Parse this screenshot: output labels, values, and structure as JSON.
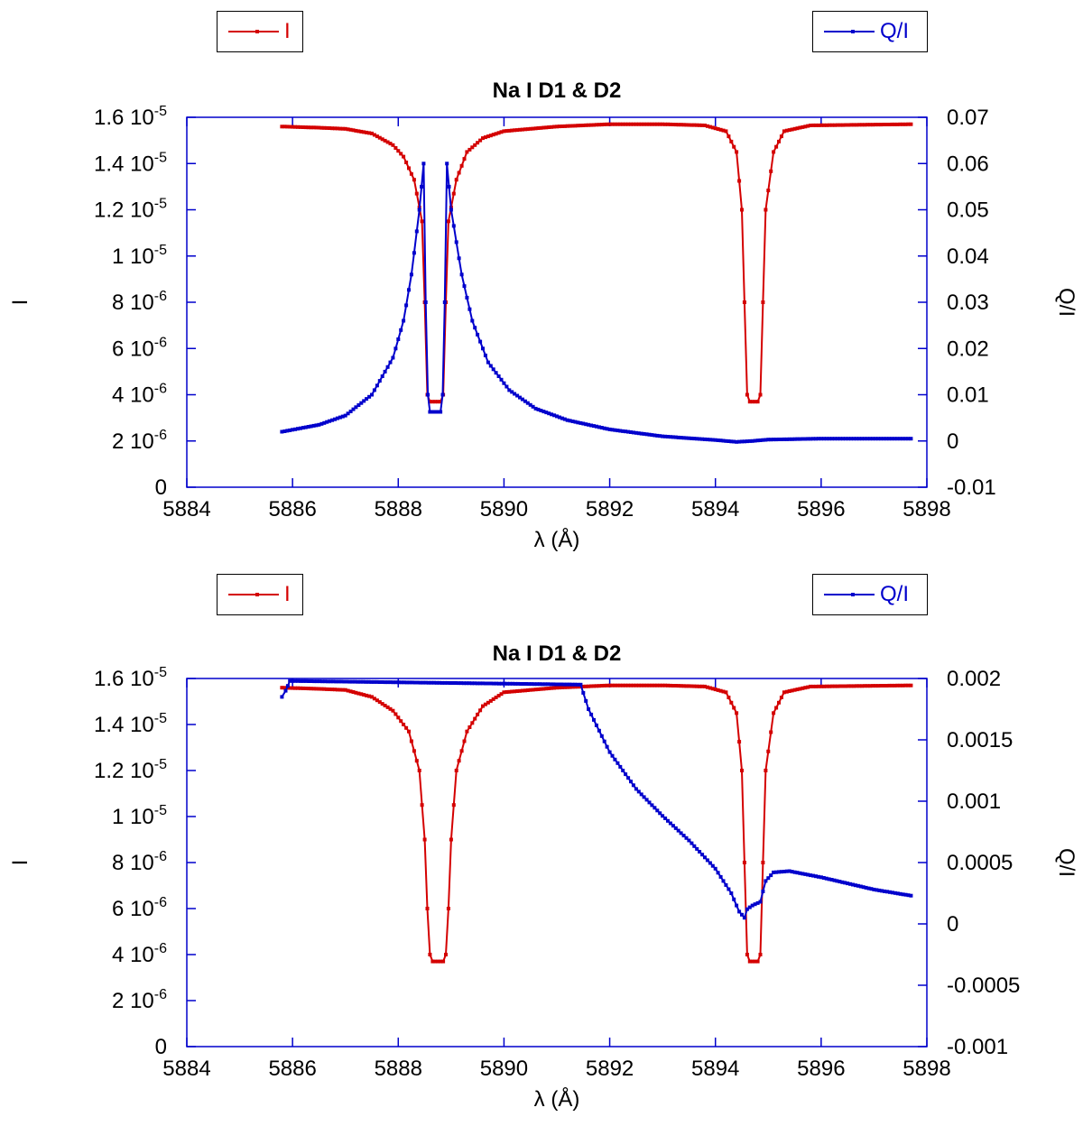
{
  "chart_data": [
    {
      "type": "line",
      "title": "Na I D1 & D2",
      "xlabel": "λ (Å)",
      "ylabel": "I",
      "y2label": "Q/I",
      "xlim": [
        5884,
        5898
      ],
      "ylim": [
        0,
        1.6e-05
      ],
      "y2lim": [
        -0.01,
        0.07
      ],
      "xticks": [
        "5884",
        "5886",
        "5888",
        "5890",
        "5892",
        "5894",
        "5896",
        "5898"
      ],
      "yticks": [
        {
          "base": "0",
          "exp": ""
        },
        {
          "base": "2 10",
          "exp": "-6"
        },
        {
          "base": "4 10",
          "exp": "-6"
        },
        {
          "base": "6 10",
          "exp": "-6"
        },
        {
          "base": "8 10",
          "exp": "-6"
        },
        {
          "base": "1 10",
          "exp": "-5"
        },
        {
          "base": "1.2 10",
          "exp": "-5"
        },
        {
          "base": "1.4 10",
          "exp": "-5"
        },
        {
          "base": "1.6 10",
          "exp": "-5"
        }
      ],
      "y2ticks": [
        "-0.01",
        "0",
        "0.01",
        "0.02",
        "0.03",
        "0.04",
        "0.05",
        "0.06",
        "0.07"
      ],
      "legend": {
        "left": "I",
        "right": "Q/I"
      },
      "series": [
        {
          "name": "I",
          "axis": "left",
          "color": "#d40000",
          "points": [
            [
              5885.8,
              1.56e-05
            ],
            [
              5886.5,
              1.555e-05
            ],
            [
              5887.0,
              1.55e-05
            ],
            [
              5887.5,
              1.53e-05
            ],
            [
              5887.9,
              1.48e-05
            ],
            [
              5888.1,
              1.43e-05
            ],
            [
              5888.3,
              1.33e-05
            ],
            [
              5888.45,
              1.15e-05
            ],
            [
              5888.5,
              8e-06
            ],
            [
              5888.55,
              4e-06
            ],
            [
              5888.6,
              3.7e-06
            ],
            [
              5888.7,
              3.7e-06
            ],
            [
              5888.8,
              3.7e-06
            ],
            [
              5888.85,
              4e-06
            ],
            [
              5888.9,
              8e-06
            ],
            [
              5888.95,
              1.15e-05
            ],
            [
              5889.1,
              1.33e-05
            ],
            [
              5889.3,
              1.45e-05
            ],
            [
              5889.6,
              1.51e-05
            ],
            [
              5890.0,
              1.54e-05
            ],
            [
              5891.0,
              1.56e-05
            ],
            [
              5892.0,
              1.57e-05
            ],
            [
              5893.0,
              1.57e-05
            ],
            [
              5893.8,
              1.565e-05
            ],
            [
              5894.2,
              1.54e-05
            ],
            [
              5894.4,
              1.45e-05
            ],
            [
              5894.5,
              1.2e-05
            ],
            [
              5894.55,
              8e-06
            ],
            [
              5894.6,
              4e-06
            ],
            [
              5894.65,
              3.7e-06
            ],
            [
              5894.75,
              3.7e-06
            ],
            [
              5894.8,
              3.7e-06
            ],
            [
              5894.85,
              4e-06
            ],
            [
              5894.9,
              8e-06
            ],
            [
              5894.95,
              1.2e-05
            ],
            [
              5895.1,
              1.45e-05
            ],
            [
              5895.3,
              1.54e-05
            ],
            [
              5895.8,
              1.565e-05
            ],
            [
              5897.7,
              1.57e-05
            ]
          ]
        },
        {
          "name": "Q/I",
          "axis": "right",
          "color": "#0000cc",
          "points": [
            [
              5885.8,
              0.002
            ],
            [
              5886.5,
              0.0035
            ],
            [
              5887.0,
              0.0055
            ],
            [
              5887.5,
              0.01
            ],
            [
              5887.9,
              0.018
            ],
            [
              5888.1,
              0.026
            ],
            [
              5888.25,
              0.036
            ],
            [
              5888.4,
              0.05
            ],
            [
              5888.48,
              0.06
            ],
            [
              5888.52,
              0.03
            ],
            [
              5888.56,
              0.01
            ],
            [
              5888.6,
              0.0063
            ],
            [
              5888.7,
              0.0063
            ],
            [
              5888.8,
              0.0063
            ],
            [
              5888.84,
              0.01
            ],
            [
              5888.88,
              0.03
            ],
            [
              5888.92,
              0.06
            ],
            [
              5889.0,
              0.05
            ],
            [
              5889.2,
              0.036
            ],
            [
              5889.4,
              0.026
            ],
            [
              5889.7,
              0.017
            ],
            [
              5890.1,
              0.011
            ],
            [
              5890.6,
              0.007
            ],
            [
              5891.2,
              0.0045
            ],
            [
              5892.0,
              0.0025
            ],
            [
              5893.0,
              0.001
            ],
            [
              5894.0,
              0.0002
            ],
            [
              5894.4,
              -0.0002
            ],
            [
              5894.7,
              0.0
            ],
            [
              5895.0,
              0.0003
            ],
            [
              5896.0,
              0.0005
            ],
            [
              5897.7,
              0.0005
            ]
          ]
        }
      ]
    },
    {
      "type": "line",
      "title": "Na I D1 & D2",
      "xlabel": "λ (Å)",
      "ylabel": "I",
      "y2label": "Q/I",
      "xlim": [
        5884,
        5898
      ],
      "ylim": [
        0,
        1.6e-05
      ],
      "y2lim": [
        -0.001,
        0.002
      ],
      "xticks": [
        "5884",
        "5886",
        "5888",
        "5890",
        "5892",
        "5894",
        "5896",
        "5898"
      ],
      "yticks": [
        {
          "base": "0",
          "exp": ""
        },
        {
          "base": "2 10",
          "exp": "-6"
        },
        {
          "base": "4 10",
          "exp": "-6"
        },
        {
          "base": "6 10",
          "exp": "-6"
        },
        {
          "base": "8 10",
          "exp": "-6"
        },
        {
          "base": "1 10",
          "exp": "-5"
        },
        {
          "base": "1.2 10",
          "exp": "-5"
        },
        {
          "base": "1.4 10",
          "exp": "-5"
        },
        {
          "base": "1.6 10",
          "exp": "-5"
        }
      ],
      "y2ticks": [
        "-0.001",
        "-0.0005",
        "0",
        "0.0005",
        "0.001",
        "0.0015",
        "0.002"
      ],
      "legend": {
        "left": "I",
        "right": "Q/I"
      },
      "series": [
        {
          "name": "I",
          "axis": "left",
          "color": "#d40000",
          "points": [
            [
              5885.8,
              1.56e-05
            ],
            [
              5886.5,
              1.555e-05
            ],
            [
              5887.0,
              1.55e-05
            ],
            [
              5887.5,
              1.52e-05
            ],
            [
              5887.9,
              1.46e-05
            ],
            [
              5888.2,
              1.37e-05
            ],
            [
              5888.4,
              1.2e-05
            ],
            [
              5888.5,
              9e-06
            ],
            [
              5888.55,
              6e-06
            ],
            [
              5888.6,
              4e-06
            ],
            [
              5888.65,
              3.7e-06
            ],
            [
              5888.75,
              3.7e-06
            ],
            [
              5888.85,
              3.7e-06
            ],
            [
              5888.9,
              4e-06
            ],
            [
              5888.95,
              6e-06
            ],
            [
              5889.0,
              9e-06
            ],
            [
              5889.1,
              1.2e-05
            ],
            [
              5889.3,
              1.37e-05
            ],
            [
              5889.6,
              1.48e-05
            ],
            [
              5890.0,
              1.54e-05
            ],
            [
              5891.0,
              1.56e-05
            ],
            [
              5892.0,
              1.57e-05
            ],
            [
              5893.0,
              1.57e-05
            ],
            [
              5893.8,
              1.565e-05
            ],
            [
              5894.2,
              1.54e-05
            ],
            [
              5894.4,
              1.45e-05
            ],
            [
              5894.5,
              1.2e-05
            ],
            [
              5894.55,
              8e-06
            ],
            [
              5894.6,
              4e-06
            ],
            [
              5894.65,
              3.7e-06
            ],
            [
              5894.75,
              3.7e-06
            ],
            [
              5894.8,
              3.7e-06
            ],
            [
              5894.85,
              4e-06
            ],
            [
              5894.9,
              8e-06
            ],
            [
              5894.95,
              1.2e-05
            ],
            [
              5895.1,
              1.45e-05
            ],
            [
              5895.3,
              1.54e-05
            ],
            [
              5895.8,
              1.565e-05
            ],
            [
              5897.7,
              1.57e-05
            ]
          ]
        },
        {
          "name": "Q/I",
          "axis": "right",
          "color": "#0000cc",
          "points": [
            [
              5885.8,
              0.00185
            ],
            [
              5885.87,
              0.0019
            ],
            [
              5885.95,
              0.00198
            ],
            [
              5891.45,
              0.00195
            ],
            [
              5891.6,
              0.00175
            ],
            [
              5892.0,
              0.0014
            ],
            [
              5892.5,
              0.0011
            ],
            [
              5893.0,
              0.00088
            ],
            [
              5893.5,
              0.00068
            ],
            [
              5894.0,
              0.00045
            ],
            [
              5894.3,
              0.00025
            ],
            [
              5894.45,
              0.0001
            ],
            [
              5894.55,
              5e-05
            ],
            [
              5894.6,
              0.00012
            ],
            [
              5894.7,
              0.00015
            ],
            [
              5894.85,
              0.00018
            ],
            [
              5894.95,
              0.00035
            ],
            [
              5895.1,
              0.00042
            ],
            [
              5895.4,
              0.00043
            ],
            [
              5896.0,
              0.00038
            ],
            [
              5896.5,
              0.00033
            ],
            [
              5897.0,
              0.00028
            ],
            [
              5897.7,
              0.00023
            ]
          ]
        }
      ]
    }
  ],
  "colors": {
    "I": "#d40000",
    "QI": "#0000cc",
    "axis": "#0000cc"
  }
}
